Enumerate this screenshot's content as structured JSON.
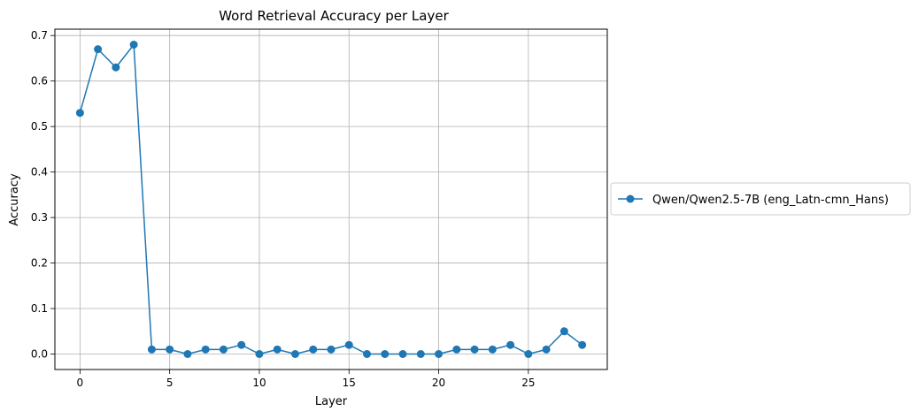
{
  "chart_data": {
    "type": "line",
    "title": "Word Retrieval Accuracy per Layer",
    "xlabel": "Layer",
    "ylabel": "Accuracy",
    "xlim": [
      -1.4,
      29.4
    ],
    "ylim": [
      -0.034,
      0.714
    ],
    "xticks": [
      0,
      5,
      10,
      15,
      20,
      25
    ],
    "xtick_labels": [
      "0",
      "5",
      "10",
      "15",
      "20",
      "25"
    ],
    "yticks": [
      0.0,
      0.1,
      0.2,
      0.3,
      0.4,
      0.5,
      0.6,
      0.7
    ],
    "ytick_labels": [
      "0.0",
      "0.1",
      "0.2",
      "0.3",
      "0.4",
      "0.5",
      "0.6",
      "0.7"
    ],
    "grid": true,
    "legend_position": "outside-right",
    "series": [
      {
        "name": "Qwen/Qwen2.5-7B (eng_Latn-cmn_Hans)",
        "color": "#1f77b4",
        "marker": "circle",
        "x": [
          0,
          1,
          2,
          3,
          4,
          5,
          6,
          7,
          8,
          9,
          10,
          11,
          12,
          13,
          14,
          15,
          16,
          17,
          18,
          19,
          20,
          21,
          22,
          23,
          24,
          25,
          26,
          27,
          28
        ],
        "y": [
          0.53,
          0.67,
          0.63,
          0.68,
          0.01,
          0.01,
          0.0,
          0.01,
          0.01,
          0.02,
          0.0,
          0.01,
          0.0,
          0.01,
          0.01,
          0.02,
          0.0,
          0.0,
          0.0,
          0.0,
          0.0,
          0.01,
          0.01,
          0.01,
          0.02,
          0.0,
          0.01,
          0.05,
          0.02
        ]
      }
    ]
  }
}
